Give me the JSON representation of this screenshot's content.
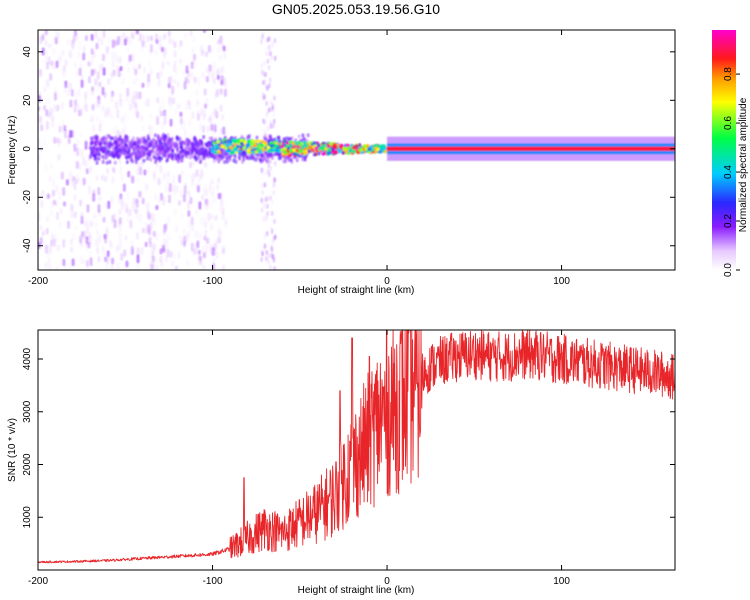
{
  "figure": {
    "title": "GN05.2025.053.19.56.G10"
  },
  "chart_data": [
    {
      "type": "heatmap",
      "title": "GN05.2025.053.19.56.G10",
      "xlabel": "Height of straight line (km)",
      "ylabel": "Frequency (Hz)",
      "xlim": [
        -200,
        165
      ],
      "ylim": [
        -50,
        49
      ],
      "xticks": [
        -200,
        -100,
        0,
        100
      ],
      "yticks": [
        -40,
        -20,
        0,
        20,
        40
      ],
      "colorbar": {
        "label": "Normalized spectral amplitude",
        "range": [
          0,
          0.98
        ],
        "ticks": [
          0.0,
          0.2,
          0.4,
          0.6,
          0.8
        ],
        "colormap": "rainbow (white-violet-blue-cyan-green-yellow-orange-red-magenta)"
      },
      "features": [
        {
          "x_range": [
            -200,
            -100
          ],
          "description": "scattered low-amplitude noise across all frequencies"
        },
        {
          "x_range": [
            -170,
            -45
          ],
          "freq_center": 0,
          "freq_halfwidth": 6,
          "amplitude": 0.2
        },
        {
          "x_range": [
            -100,
            -30
          ],
          "freq_center": 1,
          "amplitude_peak": 0.6
        },
        {
          "x_range": [
            -60,
            0
          ],
          "freq_center": 0,
          "amplitude_peak": 0.9
        },
        {
          "x_range": [
            0,
            165
          ],
          "freq_center": 0,
          "amplitude": 0.9,
          "description": "steady narrow carrier line"
        }
      ]
    },
    {
      "type": "line",
      "xlabel": "Height of straight line (km)",
      "ylabel": "SNR (10 * v/v)",
      "xlim": [
        -200,
        165
      ],
      "ylim": [
        0,
        4550
      ],
      "xticks": [
        -200,
        -100,
        0,
        100
      ],
      "yticks": [
        1000,
        2000,
        3000,
        4000
      ],
      "color": "#e8262a",
      "series": [
        {
          "x": [
            -200,
            -180,
            -160,
            -140,
            -120,
            -100,
            -90,
            -80,
            -70,
            -60,
            -50,
            -40,
            -30,
            -25,
            -20,
            -15,
            -10,
            -5,
            0,
            5,
            10,
            15,
            20,
            25,
            30,
            40,
            50,
            60,
            70,
            80,
            90,
            100,
            110,
            120,
            130,
            140,
            150,
            160,
            165
          ],
          "y": [
            150,
            160,
            180,
            220,
            260,
            300,
            400,
            600,
            800,
            700,
            900,
            1100,
            1400,
            1700,
            2000,
            2200,
            2500,
            2800,
            3000,
            3150,
            3300,
            3500,
            3700,
            3850,
            3950,
            4050,
            4100,
            4050,
            4050,
            4100,
            4050,
            4000,
            3950,
            3900,
            3850,
            3800,
            3750,
            3700,
            3650
          ]
        }
      ],
      "spikes": [
        {
          "x": -20,
          "y": 4400
        },
        {
          "x": -10,
          "y": 4050
        },
        {
          "x": -27,
          "y": 3400
        },
        {
          "x": -82,
          "y": 1750
        },
        {
          "x": 88,
          "y": 4500
        }
      ]
    }
  ]
}
